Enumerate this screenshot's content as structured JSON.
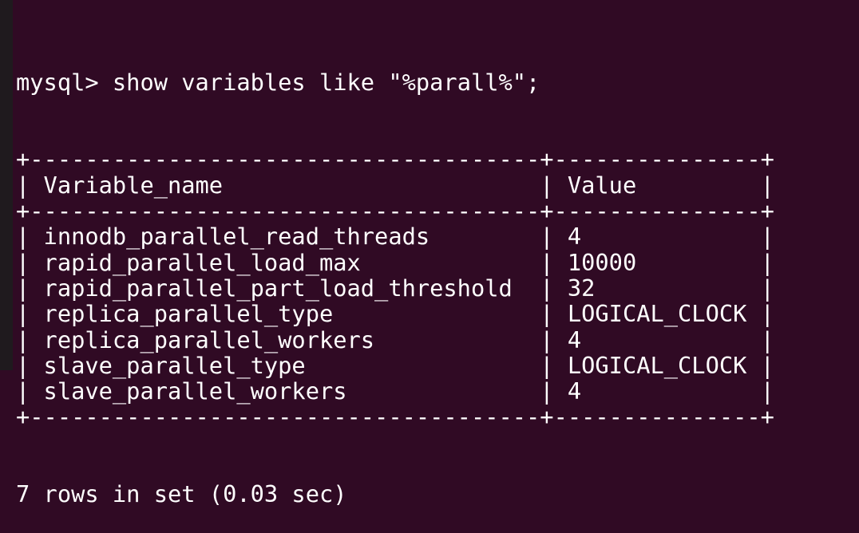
{
  "terminal": {
    "prompt": "mysql> ",
    "command": "show variables like \"%parall%\";",
    "columns": [
      "Variable_name",
      "Value"
    ],
    "rows": [
      [
        "innodb_parallel_read_threads",
        "4"
      ],
      [
        "rapid_parallel_load_max",
        "10000"
      ],
      [
        "rapid_parallel_part_load_threshold",
        "32"
      ],
      [
        "replica_parallel_type",
        "LOGICAL_CLOCK"
      ],
      [
        "replica_parallel_workers",
        "4"
      ],
      [
        "slave_parallel_type",
        "LOGICAL_CLOCK"
      ],
      [
        "slave_parallel_workers",
        "4"
      ]
    ],
    "footer": "7 rows in set (0.03 sec)"
  },
  "colors": {
    "background": "#300a24",
    "text": "#ffffff"
  }
}
